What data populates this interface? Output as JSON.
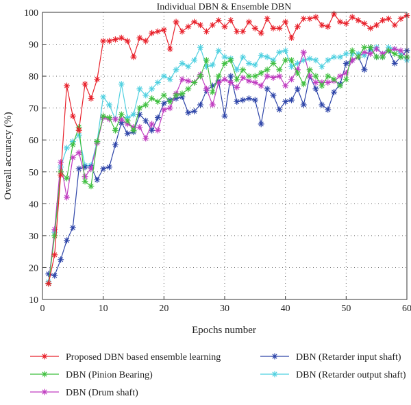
{
  "chart_data": {
    "type": "line",
    "title": "Individual DBN & Ensemble DBN",
    "xlabel": "Epochs number",
    "ylabel": "Overall accuracy (%)",
    "xlim": [
      0,
      60
    ],
    "ylim": [
      10,
      100
    ],
    "xticks": [
      0,
      10,
      20,
      30,
      40,
      50,
      60
    ],
    "yticks": [
      10,
      20,
      30,
      40,
      50,
      60,
      70,
      80,
      90,
      100
    ],
    "grid": true,
    "legend_position": "bottom",
    "x": [
      1,
      2,
      3,
      4,
      5,
      6,
      7,
      8,
      9,
      10,
      11,
      12,
      13,
      14,
      15,
      16,
      17,
      18,
      19,
      20,
      21,
      22,
      23,
      24,
      25,
      26,
      27,
      28,
      29,
      30,
      31,
      32,
      33,
      34,
      35,
      36,
      37,
      38,
      39,
      40,
      41,
      42,
      43,
      44,
      45,
      46,
      47,
      48,
      49,
      50,
      51,
      52,
      53,
      54,
      55,
      56,
      57,
      58,
      59,
      60
    ],
    "series": [
      {
        "name": "Proposed DBN based ensemble learning",
        "color": "#e8202a",
        "values": [
          15,
          24,
          49,
          77,
          67.5,
          63,
          77.5,
          73,
          79,
          91,
          91,
          91.5,
          92,
          91,
          86,
          92,
          91,
          93.5,
          94,
          94.5,
          88.5,
          97,
          94,
          95.5,
          97,
          96,
          94,
          96,
          97.5,
          95.5,
          97.5,
          94,
          94,
          97,
          95,
          93.5,
          98,
          95,
          95,
          97,
          92,
          95.5,
          98,
          98,
          98.5,
          96,
          95.5,
          99.5,
          97,
          96.5,
          98.5,
          97.5,
          96.5,
          95,
          96,
          97.5,
          98,
          96,
          98,
          99
        ]
      },
      {
        "name": "DBN (Pinion Bearing)",
        "color": "#3fbf3f",
        "values": [
          15,
          30,
          50,
          48,
          58.5,
          64,
          47,
          45.5,
          59.5,
          67.5,
          67,
          63,
          68,
          66,
          63,
          70,
          71,
          73,
          72,
          74,
          72,
          74,
          74.5,
          76,
          78,
          80,
          85,
          75,
          80,
          84,
          85,
          79,
          82,
          80,
          80,
          81,
          82,
          84,
          82,
          85,
          85,
          81,
          77.5,
          82,
          80,
          77,
          80,
          79,
          77,
          79,
          88,
          86,
          89,
          89,
          86,
          86,
          88,
          87,
          86,
          86
        ]
      },
      {
        "name": "DBN (Drum shaft)",
        "color": "#c03cc0",
        "values": [
          15,
          32,
          53,
          42,
          54.5,
          56,
          48.5,
          51,
          59,
          67,
          66.5,
          66.5,
          66.5,
          65,
          64,
          64,
          60.5,
          65,
          63,
          69.5,
          70,
          74.5,
          79,
          78.5,
          78,
          80.5,
          76,
          71,
          78,
          79,
          78,
          76.5,
          79.5,
          78.5,
          78,
          77,
          80,
          79.5,
          80,
          77,
          79,
          82,
          87.5,
          80,
          78,
          78,
          78,
          78.5,
          80,
          81,
          85,
          86,
          87.5,
          87,
          88.5,
          87,
          88,
          88.5,
          88,
          86
        ]
      },
      {
        "name": "DBN (Retarder input shaft)",
        "color": "#2d44a8",
        "values": [
          18,
          17.5,
          22.5,
          28.5,
          32.5,
          51,
          51.5,
          51.5,
          47.5,
          51,
          51.5,
          58.5,
          65.5,
          62,
          62.5,
          68,
          66,
          63,
          67,
          71.5,
          72.5,
          73,
          73.5,
          68.5,
          69,
          71,
          75.5,
          77,
          78.5,
          67.5,
          80,
          72,
          72.5,
          73,
          72.5,
          65,
          76,
          74,
          69.5,
          72,
          72.5,
          76,
          71,
          80,
          76,
          71,
          69.5,
          75,
          77.5,
          84,
          85,
          86,
          82,
          89,
          86,
          86,
          88,
          84,
          86,
          88
        ]
      },
      {
        "name": "DBN (Retarder output shaft)",
        "color": "#4fd0e0",
        "values": [
          15.5,
          31,
          51.5,
          57.5,
          59.5,
          61.5,
          52,
          52,
          59.5,
          73.5,
          71,
          66.5,
          77.5,
          67,
          68,
          76,
          74,
          76,
          78,
          80,
          79,
          82,
          84,
          83,
          85,
          89,
          83,
          83.5,
          88,
          86,
          85.5,
          82,
          86,
          84,
          83.5,
          86.5,
          86,
          85,
          87.5,
          88,
          83,
          84,
          85,
          85.5,
          85,
          83,
          85,
          86,
          86,
          87,
          87,
          87,
          86.5,
          88,
          89,
          87,
          89,
          88.5,
          87,
          85
        ]
      }
    ]
  }
}
